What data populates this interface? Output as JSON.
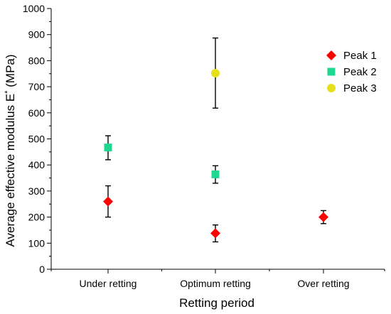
{
  "chart_data": {
    "type": "scatter",
    "xlabel": "Retting period",
    "ylabel_main": "Average effective modulus E",
    "ylabel_sup": "*",
    "ylabel_tail": " (MPa)",
    "categories": [
      "Under retting",
      "Optimum retting",
      "Over retting"
    ],
    "ylim": [
      0,
      1000
    ],
    "yticks": [
      "0",
      "100",
      "200",
      "300",
      "400",
      "500",
      "600",
      "700",
      "800",
      "900",
      "1000"
    ],
    "legend_position": "top-right",
    "grid": false,
    "series": [
      {
        "name": "Peak 1",
        "marker": "diamond",
        "color": "#ff0000",
        "points": [
          {
            "category": "Under retting",
            "value": 260,
            "err_low": 200,
            "err_high": 320
          },
          {
            "category": "Optimum retting",
            "value": 138,
            "err_low": 105,
            "err_high": 170
          },
          {
            "category": "Over retting",
            "value": 200,
            "err_low": 175,
            "err_high": 225
          }
        ]
      },
      {
        "name": "Peak 2",
        "marker": "square",
        "color": "#1ed88f",
        "points": [
          {
            "category": "Under retting",
            "value": 467,
            "err_low": 420,
            "err_high": 512
          },
          {
            "category": "Optimum retting",
            "value": 364,
            "err_low": 330,
            "err_high": 397
          }
        ]
      },
      {
        "name": "Peak 3",
        "marker": "circle",
        "color": "#e6e01a",
        "points": [
          {
            "category": "Optimum retting",
            "value": 752,
            "err_low": 618,
            "err_high": 887
          }
        ]
      }
    ]
  }
}
